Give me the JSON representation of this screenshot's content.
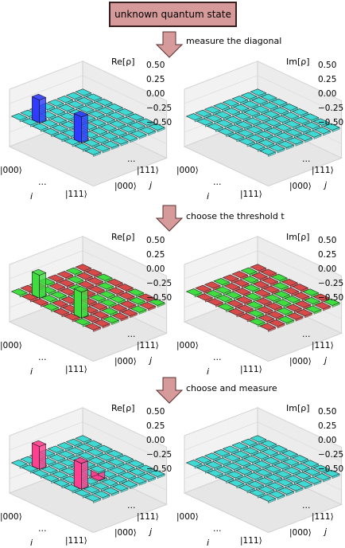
{
  "title_box": "unknown quantum state",
  "steps": [
    "measure the diagonal",
    "choose the threshold t",
    "choose and measure"
  ],
  "panel_titles": {
    "real": "Re[ρ]",
    "imag": "Im[ρ]"
  },
  "z_ticks": [
    "0.50",
    "0.25",
    "0.00",
    "−0.25",
    "−0.50"
  ],
  "kets": {
    "first": "|000⟩",
    "last": "|111⟩",
    "ellipsis": "…"
  },
  "axis_names": {
    "i": "i",
    "j": "j"
  },
  "colors": {
    "arrow": "#d69a9a",
    "row1_real_bars": "#2f3cff",
    "row1_floor": "#3fd9d4",
    "row2_selected": "#3fdd3f",
    "row2_rejected": "#d84a4a",
    "row3_bars": "#ff3f8f",
    "row3_floor": "#3fd9d4"
  },
  "chart_data": [
    {
      "type": "bar3d",
      "panel": "row1-real",
      "title": "Re[ρ]",
      "zlim": [
        -0.5,
        0.5
      ],
      "note_values": "diagonal of 8x8 matrix measured; two tall bars",
      "matrix_highlight": [
        {
          "i": 1,
          "j": 1,
          "value": 0.25
        },
        {
          "i": 5,
          "j": 5,
          "value": 0.25
        }
      ]
    },
    {
      "type": "bar3d",
      "panel": "row1-imag",
      "title": "Im[ρ]",
      "zlim": [
        -0.5,
        0.5
      ]
    },
    {
      "type": "bar3d",
      "panel": "row2-real",
      "title": "Re[ρ]",
      "zlim": [
        -0.5,
        0.5
      ]
    },
    {
      "type": "bar3d",
      "panel": "row2-imag",
      "title": "Im[ρ]",
      "zlim": [
        -0.5,
        0.5
      ]
    },
    {
      "type": "bar3d",
      "panel": "row3-real",
      "title": "Re[ρ]",
      "zlim": [
        -0.5,
        0.5
      ]
    },
    {
      "type": "bar3d",
      "panel": "row3-imag",
      "title": "Im[ρ]",
      "zlim": [
        -0.5,
        0.5
      ]
    }
  ]
}
